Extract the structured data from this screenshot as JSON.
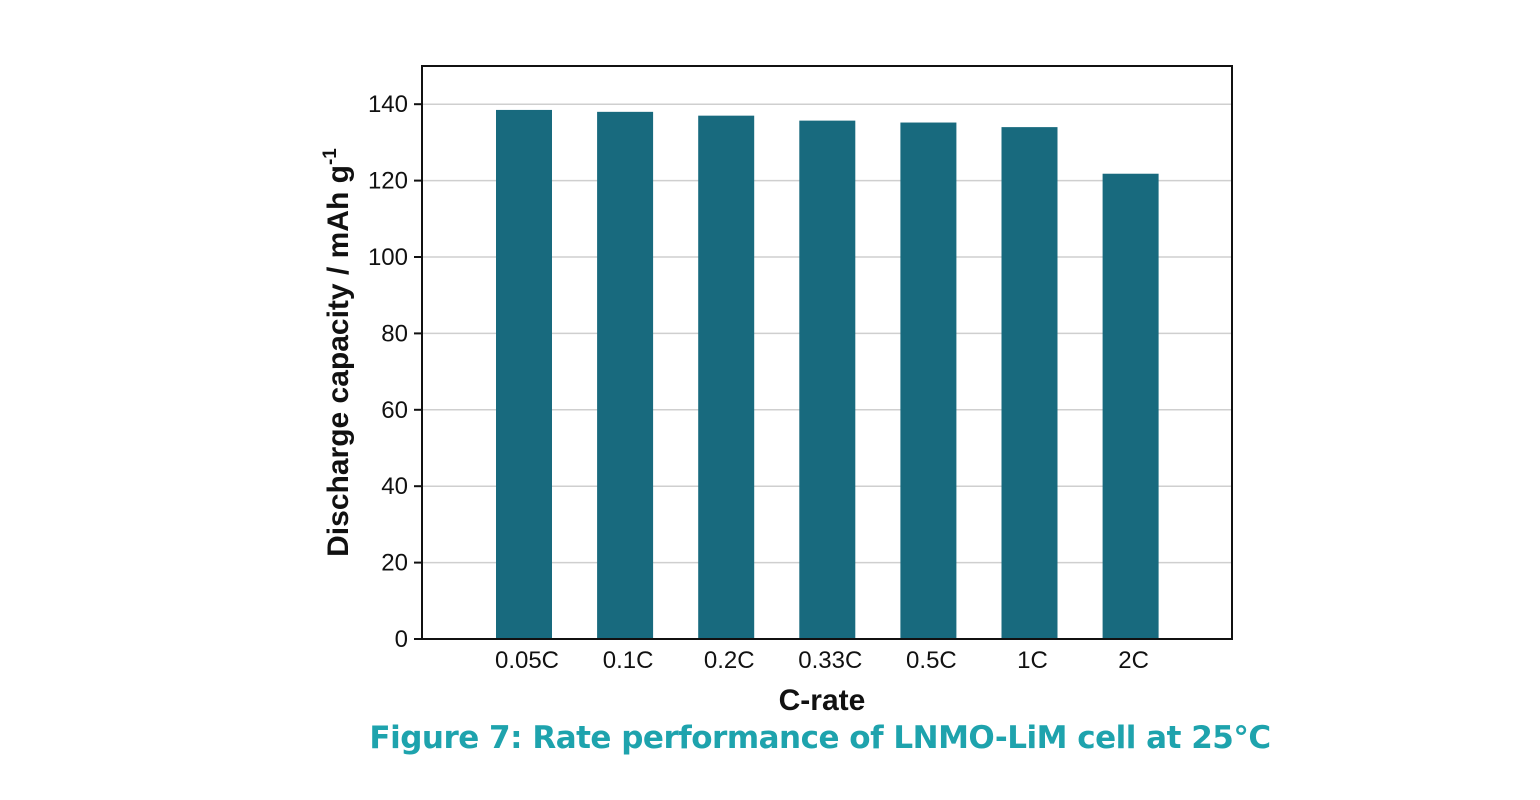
{
  "chart_data": {
    "type": "bar",
    "categories": [
      "0.05C",
      "0.1C",
      "0.2C",
      "0.33C",
      "0.5C",
      "1C",
      "2C"
    ],
    "values": [
      138.5,
      138,
      137,
      135.7,
      135.2,
      134,
      121.8
    ],
    "xlabel": "C-rate",
    "ylabel": "Discharge capacity / mAh g",
    "ylabel_superscript": "-1",
    "ylim": [
      0,
      150
    ],
    "yticks": [
      0,
      20,
      40,
      60,
      80,
      100,
      120,
      140
    ],
    "grid": true,
    "legend": "none"
  },
  "caption": "Figure 7: Rate performance of LNMO-LiM cell  at 25°C",
  "colors": {
    "bar": "#186a7e",
    "caption": "#1ea3ad",
    "grid": "#cfcfcf",
    "axis": "#111111"
  }
}
